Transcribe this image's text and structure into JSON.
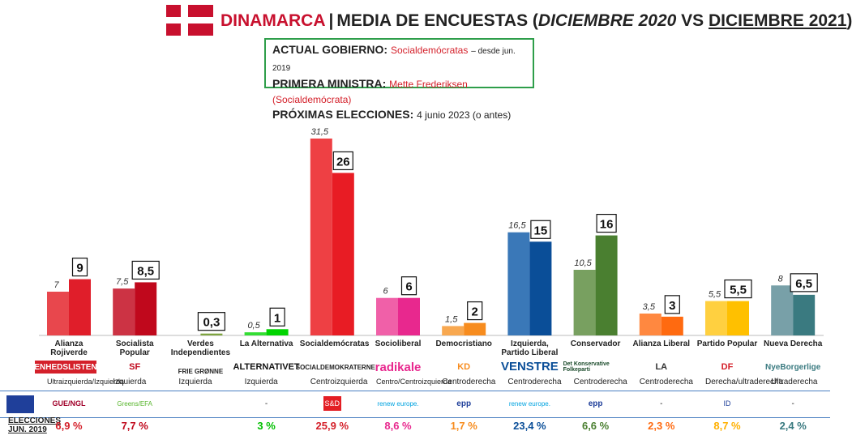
{
  "header": {
    "country": "DINAMARCA",
    "sep": "|",
    "title_main": "MEDIA DE ENCUESTAS",
    "title_open": "(",
    "title_from": "DICIEMBRE 2020",
    "title_vs": "VS",
    "title_to": "DICIEMBRE 2021",
    "title_close": ")"
  },
  "info": {
    "gov_label": "ACTUAL GOBIERNO:",
    "gov_value": "Socialdemócratas",
    "gov_since": "– desde jun. 2019",
    "pm_label": "PRIMERA MINISTRA:",
    "pm_value": "Mette Frederiksen (Socialdemócrata)",
    "next_label": "PRÓXIMAS ELECCIONES:",
    "next_value": "4 junio 2023 (o antes)"
  },
  "chart_data": {
    "type": "bar",
    "title": "",
    "ylabel": "",
    "ylim": [
      0,
      35
    ],
    "categories": [
      "Alianza Rojiverde",
      "Socialista Popular",
      "Verdes Independientes",
      "La Alternativa",
      "Socialdemócratas",
      "Socioliberal",
      "Democristiano",
      "Izquierda, Partido Liberal",
      "Conservador",
      "Alianza Liberal",
      "Partido Popular",
      "Nueva Derecha"
    ],
    "series": [
      {
        "values": [
          7,
          7.5,
          null,
          0.5,
          31.5,
          6,
          1.5,
          16.5,
          10.5,
          3.5,
          5.5,
          8
        ]
      },
      {
        "values": [
          9,
          8.5,
          0.3,
          1,
          26,
          6,
          2,
          15,
          16,
          3,
          5.5,
          6.5
        ]
      }
    ],
    "labels_2020": [
      "7",
      "7,5",
      "",
      "0,5",
      "31,5",
      "6",
      "1,5",
      "16,5",
      "10,5",
      "3,5",
      "5,5",
      "8"
    ],
    "labels_2021": [
      "9",
      "8,5",
      "0,3",
      "1",
      "26",
      "6",
      "2",
      "15",
      "16",
      "3",
      "5,5",
      "6,5"
    ],
    "colors_2020": [
      "#e8474d",
      "#cc3344",
      "#9bbb59",
      "#33dd33",
      "#ee4044",
      "#f060a8",
      "#f8a850",
      "#3a78b8",
      "#78a060",
      "#ff8840",
      "#ffd040",
      "#78a0a8"
    ],
    "colors_2021": [
      "#e01e2a",
      "#c0081c",
      "#7ea440",
      "#00d400",
      "#e81c24",
      "#e8288e",
      "#f78c1e",
      "#0a4e98",
      "#4a7f30",
      "#ff6a10",
      "#ffc000",
      "#3a7a80"
    ]
  },
  "parties": [
    {
      "category": "Alianza Rojiverde",
      "logo": "ENHEDSLISTEN",
      "ideology": "Ultraizquierda/Izquierda",
      "eu_group": "GUE/NGL",
      "result": "6,9 %",
      "result_color": "#d4202a",
      "logo_color": "#d4202a"
    },
    {
      "category": "Socialista Popular",
      "logo": "SF",
      "ideology": "Izquierda",
      "eu_group": "Greens/EFA",
      "result": "7,7 %",
      "result_color": "#c0081c",
      "logo_color": "#c0081c"
    },
    {
      "category": "Verdes Independientes",
      "logo": "FRIE GRØNNE",
      "ideology": "Izquierda",
      "eu_group": "",
      "result": "",
      "result_color": "#7ea440",
      "logo_color": "#222222"
    },
    {
      "category": "La Alternativa",
      "logo": "ALTERNATIVET",
      "ideology": "Izquierda",
      "eu_group": "-",
      "result": "3 %",
      "result_color": "#00c000",
      "logo_color": "#111111"
    },
    {
      "category": "Socialdemócratas",
      "logo": "SOCIALDEMOKRATERNE",
      "ideology": "Centroizquierda",
      "eu_group": "S&D",
      "result": "25,9 %",
      "result_color": "#d4202a",
      "logo_color": "#222222"
    },
    {
      "category": "Socioliberal",
      "logo": "radikale",
      "ideology": "Centro/Centroizquierda",
      "eu_group": "renew europe.",
      "result": "8,6 %",
      "result_color": "#e8288e",
      "logo_color": "#e8288e"
    },
    {
      "category": "Democristiano",
      "logo": "KD",
      "ideology": "Centroderecha",
      "eu_group": "epp",
      "result": "1,7 %",
      "result_color": "#f78c1e",
      "logo_color": "#f78c1e"
    },
    {
      "category": "Izquierda, Partido Liberal",
      "logo": "VENSTRE",
      "ideology": "Centroderecha",
      "eu_group": "renew europe.",
      "result": "23,4 %",
      "result_color": "#0a4e98",
      "logo_color": "#0a4e98"
    },
    {
      "category": "Conservador",
      "logo": "Det Konservative Folkeparti",
      "ideology": "Centroderecha",
      "eu_group": "epp",
      "result": "6,6 %",
      "result_color": "#4a7f30",
      "logo_color": "#1a4a2a"
    },
    {
      "category": "Alianza Liberal",
      "logo": "LA",
      "ideology": "Centroderecha",
      "eu_group": "-",
      "result": "2,3 %",
      "result_color": "#ff6a10",
      "logo_color": "#333333"
    },
    {
      "category": "Partido Popular",
      "logo": "DF",
      "ideology": "Derecha/ultraderecha",
      "eu_group": "ID",
      "result": "8,7 %",
      "result_color": "#ffb000",
      "logo_color": "#d4202a"
    },
    {
      "category": "Nueva Derecha",
      "logo": "NyeBorgerlige",
      "ideology": "Ultraderecha",
      "eu_group": "-",
      "result": "2,4 %",
      "result_color": "#3a7a80",
      "logo_color": "#3a7a80"
    }
  ],
  "results_label_1": "ELECCIONES",
  "results_label_2": "JUN. 2019"
}
